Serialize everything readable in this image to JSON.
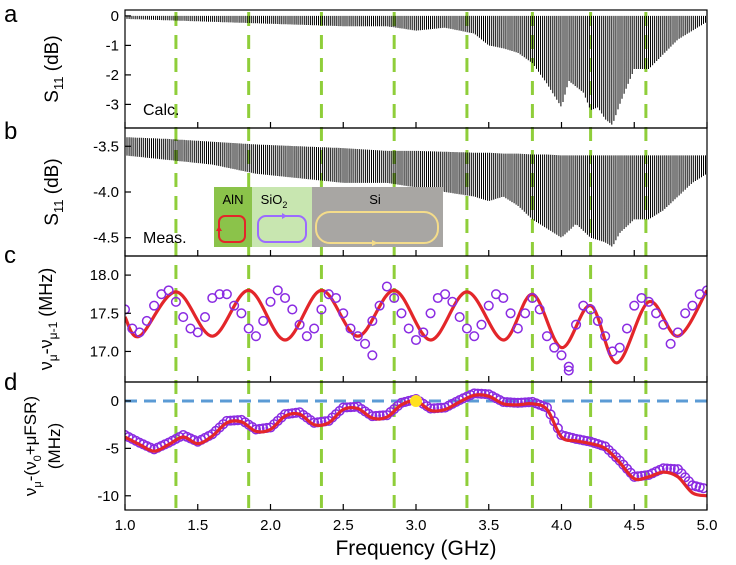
{
  "chart_data": {
    "type": "line",
    "layout": "stacked",
    "shared_x": {
      "xlabel": "Frequency (GHz)",
      "xlim": [
        1.0,
        5.0
      ],
      "ticks": [
        1.0,
        1.5,
        2.0,
        2.5,
        3.0,
        3.5,
        4.0,
        4.5,
        5.0
      ],
      "tick_labels": [
        "1.0",
        "1.5",
        "2.0",
        "2.5",
        "3.0",
        "3.5",
        "4.0",
        "4.5",
        "5.0"
      ]
    },
    "vertical_markers_ghz": [
      1.35,
      1.85,
      2.35,
      2.85,
      3.35,
      3.8,
      4.2,
      4.58
    ],
    "colors": {
      "marker": "#8fce3a",
      "curve": "#e3262a",
      "points": "#8a2be2",
      "zero_line": "#5b9bd5",
      "highlight": "#ffe020",
      "spectrum": "#000000"
    },
    "panels": [
      {
        "id": "a",
        "label": "a",
        "ylabel": {
          "main": "S",
          "sub": "11",
          "unit": " (dB)"
        },
        "ylim": [
          -3.8,
          0.2
        ],
        "yticks": [
          0,
          -1,
          -2,
          -3
        ],
        "ytick_labels": [
          "0",
          "-1",
          "-2",
          "-3"
        ],
        "annotation": "Calc.",
        "series": {
          "name": "calculated S11 resonance envelope",
          "x": [
            1.0,
            1.3,
            1.6,
            1.9,
            2.2,
            2.5,
            2.8,
            3.0,
            3.2,
            3.4,
            3.5,
            3.6,
            3.7,
            3.8,
            3.9,
            3.95,
            4.0,
            4.05,
            4.15,
            4.2,
            4.25,
            4.3,
            4.35,
            4.4,
            4.5,
            4.6,
            4.7,
            4.8,
            4.9,
            5.0
          ],
          "dip": [
            -0.1,
            -0.15,
            -0.2,
            -0.25,
            -0.3,
            -0.35,
            -0.35,
            -0.5,
            -0.4,
            -0.6,
            -1.0,
            -1.1,
            -1.25,
            -1.6,
            -2.3,
            -2.7,
            -3.1,
            -2.2,
            -2.6,
            -3.2,
            -3.1,
            -3.5,
            -3.7,
            -3.0,
            -1.8,
            -1.8,
            -1.3,
            -0.8,
            -0.5,
            -0.2
          ]
        }
      },
      {
        "id": "b",
        "label": "b",
        "ylabel": {
          "main": "S",
          "sub": "11",
          "unit": " (dB)"
        },
        "ylim": [
          -4.7,
          -3.3
        ],
        "yticks": [
          -3.5,
          -4.0,
          -4.5
        ],
        "ytick_labels": [
          "-3.5",
          "-4.0",
          "-4.5"
        ],
        "annotation": "Meas.",
        "series": {
          "name": "measured S11 resonance envelope",
          "x": [
            1.0,
            1.3,
            1.6,
            1.9,
            2.2,
            2.5,
            2.8,
            3.0,
            3.2,
            3.4,
            3.5,
            3.6,
            3.7,
            3.8,
            3.9,
            4.0,
            4.1,
            4.2,
            4.3,
            4.35,
            4.4,
            4.5,
            4.6,
            4.7,
            4.8,
            4.9,
            5.0
          ],
          "top": [
            -3.4,
            -3.42,
            -3.45,
            -3.48,
            -3.5,
            -3.52,
            -3.55,
            -3.55,
            -3.56,
            -3.57,
            -3.57,
            -3.58,
            -3.58,
            -3.59,
            -3.59,
            -3.6,
            -3.6,
            -3.6,
            -3.6,
            -3.6,
            -3.6,
            -3.6,
            -3.6,
            -3.6,
            -3.6,
            -3.6,
            -3.6
          ],
          "dip": [
            -3.6,
            -3.65,
            -3.7,
            -3.8,
            -3.85,
            -3.9,
            -3.9,
            -3.95,
            -4.0,
            -4.05,
            -4.1,
            -4.05,
            -4.15,
            -4.3,
            -4.4,
            -4.5,
            -4.35,
            -4.5,
            -4.55,
            -4.6,
            -4.45,
            -4.3,
            -4.3,
            -4.2,
            -4.05,
            -3.9,
            -3.8
          ]
        },
        "inset": {
          "sections": [
            "AlN",
            "SiO",
            "Si"
          ],
          "sio2_subscript": "2",
          "colors": {
            "aln": "#8bc34a",
            "sio2": "#c8e6b0",
            "si": "#a8a6a3",
            "loop_aln": "#e3262a",
            "loop_sio2": "#9b6bff",
            "loop_si": "#f4dc8a"
          }
        }
      },
      {
        "id": "c",
        "label": "c",
        "ylabel": {
          "text": "ν",
          "sub_mu": "μ",
          "minus": "-ν",
          "sub_mu1": "μ-1",
          "unit": "  (MHz)"
        },
        "ylim": [
          16.6,
          18.25
        ],
        "yticks": [
          18.0,
          17.5,
          17.0
        ],
        "ytick_labels": [
          "18.0",
          "17.5",
          "17.0"
        ],
        "fit": {
          "name": "fit",
          "x": [
            1.0,
            1.1,
            1.35,
            1.6,
            1.85,
            2.1,
            2.35,
            2.6,
            2.85,
            3.1,
            3.35,
            3.6,
            3.8,
            4.0,
            4.2,
            4.38,
            4.6,
            4.8,
            5.0
          ],
          "y": [
            17.45,
            17.2,
            17.78,
            17.2,
            17.8,
            17.15,
            17.8,
            17.2,
            17.8,
            17.15,
            17.78,
            17.15,
            17.75,
            17.05,
            17.6,
            16.85,
            17.65,
            17.2,
            17.8
          ]
        },
        "measured": {
          "name": "measured",
          "x": [
            1.0,
            1.05,
            1.1,
            1.15,
            1.2,
            1.25,
            1.3,
            1.35,
            1.4,
            1.45,
            1.5,
            1.55,
            1.6,
            1.65,
            1.7,
            1.75,
            1.8,
            1.85,
            1.9,
            1.95,
            2.0,
            2.05,
            2.1,
            2.15,
            2.2,
            2.25,
            2.3,
            2.35,
            2.4,
            2.45,
            2.5,
            2.55,
            2.6,
            2.65,
            2.7,
            2.75,
            2.8,
            2.85,
            2.9,
            2.95,
            3.0,
            3.05,
            3.1,
            3.15,
            3.2,
            3.25,
            3.3,
            3.35,
            3.4,
            3.45,
            3.5,
            3.55,
            3.6,
            3.65,
            3.7,
            3.75,
            3.8,
            3.85,
            3.9,
            3.95,
            4.0,
            4.05,
            4.1,
            4.15,
            4.2,
            4.25,
            4.3,
            4.35,
            4.4,
            4.45,
            4.5,
            4.55,
            4.6,
            4.65,
            4.7,
            4.75,
            4.8,
            4.85,
            4.9,
            4.95,
            5.0
          ],
          "y": [
            17.55,
            17.3,
            17.25,
            17.4,
            17.6,
            17.75,
            17.8,
            17.65,
            17.45,
            17.3,
            17.25,
            17.45,
            17.7,
            17.75,
            17.75,
            17.6,
            17.5,
            17.3,
            17.2,
            17.4,
            17.65,
            17.8,
            17.7,
            17.55,
            17.35,
            17.2,
            17.3,
            17.55,
            17.75,
            17.7,
            17.5,
            17.3,
            17.2,
            17.1,
            17.4,
            17.6,
            17.85,
            17.7,
            17.5,
            17.3,
            17.15,
            17.25,
            17.5,
            17.7,
            17.75,
            17.65,
            17.45,
            17.3,
            17.2,
            17.35,
            17.6,
            17.75,
            17.7,
            17.5,
            17.3,
            17.5,
            17.7,
            17.55,
            17.2,
            17.05,
            16.95,
            16.8,
            17.35,
            17.6,
            17.55,
            17.4,
            17.2,
            17.0,
            17.05,
            17.3,
            17.6,
            17.7,
            17.65,
            17.5,
            17.35,
            17.1,
            17.25,
            17.5,
            17.6,
            17.75,
            17.8
          ]
        },
        "outliers": {
          "x": [
            2.7,
            4.05
          ],
          "y": [
            16.95,
            16.75
          ]
        }
      },
      {
        "id": "d",
        "label": "d",
        "ylabel": {
          "line1": "ν",
          "line1_sub": "μ",
          "line1_rest": "-(ν",
          "line1_sub0": "0",
          "line1_tail": "+μFSR)",
          "line2": "(MHz)"
        },
        "ylim": [
          -11.5,
          2.0
        ],
        "yticks": [
          0,
          -5,
          -10
        ],
        "ytick_labels": [
          "0",
          "-5",
          "-10"
        ],
        "zero_line": 0,
        "highlight_point": {
          "x": 3.0,
          "y": 0
        },
        "fit": {
          "name": "fit",
          "x": [
            1.0,
            1.1,
            1.2,
            1.3,
            1.4,
            1.5,
            1.6,
            1.7,
            1.8,
            1.9,
            2.0,
            2.1,
            2.2,
            2.3,
            2.4,
            2.5,
            2.6,
            2.7,
            2.8,
            2.9,
            3.0,
            3.1,
            3.2,
            3.3,
            3.4,
            3.5,
            3.6,
            3.7,
            3.8,
            3.9,
            4.0,
            4.1,
            4.2,
            4.3,
            4.4,
            4.5,
            4.6,
            4.7,
            4.8,
            4.9,
            5.0
          ],
          "y": [
            -3.8,
            -4.6,
            -5.3,
            -4.6,
            -3.8,
            -4.5,
            -3.7,
            -2.3,
            -2.2,
            -3.2,
            -3.0,
            -1.6,
            -1.4,
            -2.5,
            -2.3,
            -0.9,
            -0.8,
            -1.8,
            -1.7,
            -0.4,
            0.0,
            -1.0,
            -0.9,
            -0.1,
            0.6,
            0.5,
            -0.3,
            -0.4,
            -0.3,
            -0.9,
            -3.8,
            -4.2,
            -4.5,
            -5.0,
            -6.5,
            -8.2,
            -8.0,
            -7.5,
            -8.0,
            -9.7,
            -10.0
          ]
        },
        "measured": {
          "name": "measured",
          "x": [
            1.0,
            1.1,
            1.2,
            1.3,
            1.4,
            1.5,
            1.6,
            1.7,
            1.8,
            1.9,
            2.0,
            2.1,
            2.2,
            2.3,
            2.4,
            2.5,
            2.6,
            2.7,
            2.8,
            2.9,
            3.0,
            3.1,
            3.2,
            3.3,
            3.4,
            3.5,
            3.6,
            3.7,
            3.8,
            3.9,
            4.0,
            4.1,
            4.2,
            4.3,
            4.4,
            4.5,
            4.6,
            4.7,
            4.8,
            4.9,
            5.0
          ],
          "y": [
            -3.6,
            -4.4,
            -5.1,
            -4.4,
            -3.6,
            -4.3,
            -3.5,
            -2.1,
            -2.0,
            -3.0,
            -2.8,
            -1.4,
            -1.2,
            -2.3,
            -2.1,
            -0.7,
            -0.6,
            -1.6,
            -1.5,
            -0.2,
            0.2,
            -0.8,
            -0.7,
            0.1,
            0.8,
            0.7,
            -0.1,
            -0.2,
            -0.1,
            -0.7,
            -3.6,
            -4.0,
            -4.3,
            -4.8,
            -6.3,
            -8.0,
            -7.8,
            -7.1,
            -7.2,
            -8.9,
            -9.3
          ]
        }
      }
    ]
  }
}
